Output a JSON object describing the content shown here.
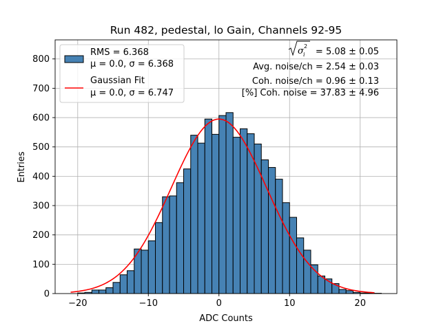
{
  "chart_data": {
    "type": "bar",
    "title": "Run 482, pedestal, lo Gain, Channels 92-95",
    "xlabel": "ADC Counts",
    "ylabel": "Entries",
    "xlim": [
      -23.2,
      25.2
    ],
    "ylim": [
      0,
      865
    ],
    "xticks": [
      -20,
      -10,
      0,
      10,
      20
    ],
    "xtick_labels": [
      "−20",
      "−10",
      "0",
      "10",
      "20"
    ],
    "yticks": [
      0,
      100,
      200,
      300,
      400,
      500,
      600,
      700,
      800
    ],
    "ytick_labels": [
      "0",
      "100",
      "200",
      "300",
      "400",
      "500",
      "600",
      "700",
      "800"
    ],
    "grid": true,
    "colors": {
      "bar_fill": "#4682b4",
      "bar_edge": "#000000",
      "fit_line": "#ff0000",
      "grid": "#b0b0b0"
    },
    "histogram": {
      "name": "RMS = 6.368",
      "bin_edges": [
        -20,
        -19,
        -18,
        -17,
        -16,
        -15,
        -14,
        -13,
        -12,
        -11,
        -10,
        -9,
        -8,
        -7,
        -6,
        -5,
        -4,
        -3,
        -2,
        -1,
        0,
        1,
        2,
        3,
        4,
        5,
        6,
        7,
        8,
        9,
        10,
        11,
        12,
        13,
        14,
        15,
        16,
        17,
        18,
        19,
        20,
        21,
        22,
        23
      ],
      "values": [
        2,
        4,
        12,
        12,
        20,
        38,
        64,
        78,
        152,
        148,
        180,
        242,
        330,
        333,
        378,
        425,
        540,
        513,
        595,
        543,
        607,
        617,
        533,
        562,
        545,
        510,
        456,
        430,
        390,
        310,
        260,
        190,
        148,
        98,
        60,
        50,
        34,
        14,
        10,
        4,
        2,
        2,
        1
      ]
    },
    "fit": {
      "name": "Gaussian Fit",
      "mu": 0.0,
      "sigma": 6.747,
      "amplitude": 595,
      "x_range": [
        -21,
        22
      ]
    },
    "legend": {
      "location": "top-left",
      "entries": [
        {
          "label_line1": "RMS = 6.368",
          "label_line2": "μ = 0.0, σ = 6.368",
          "kind": "patch"
        },
        {
          "label_line1": "Gaussian Fit",
          "label_line2": "μ = 0.0, σ = 6.747",
          "kind": "line"
        }
      ]
    },
    "annotations": {
      "sigma_total": "= 5.08 ± 0.05",
      "avg_noise": "Avg. noise/ch = 2.54 ± 0.03",
      "coh_noise": "Coh. noise/ch = 0.96 ± 0.13",
      "coh_percent": "[%] Coh. noise = 37.83 ± 4.96"
    }
  }
}
